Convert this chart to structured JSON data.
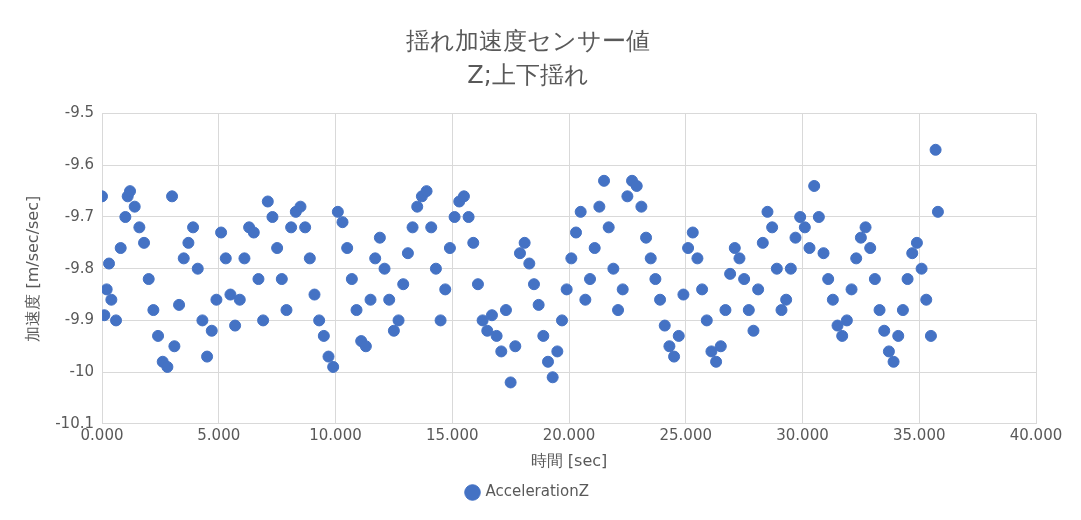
{
  "chart_data": {
    "type": "scatter",
    "title": "揺れ加速度センサー値",
    "subtitle": "Z;上下揺れ",
    "xlabel": "時間 [sec]",
    "ylabel": "加速度 [m/sec/sec]",
    "xlim": [
      0,
      40
    ],
    "xticks": [
      {
        "value": 0,
        "label": "0.000"
      },
      {
        "value": 5,
        "label": "5.000"
      },
      {
        "value": 10,
        "label": "10.000"
      },
      {
        "value": 15,
        "label": "15.000"
      },
      {
        "value": 20,
        "label": "20.000"
      },
      {
        "value": 25,
        "label": "25.000"
      },
      {
        "value": 30,
        "label": "30.000"
      },
      {
        "value": 35,
        "label": "35.000"
      },
      {
        "value": 40,
        "label": "40.000"
      }
    ],
    "ylim": [
      -10.1,
      -9.5
    ],
    "yticks": [
      -10.1,
      -10,
      -9.9,
      -9.8,
      -9.7,
      -9.6,
      -9.5
    ],
    "grid": true,
    "legend": "bottom",
    "marker": "circle",
    "series": [
      {
        "name": "AccelerationZ",
        "color": "#4472c4",
        "x": [
          0,
          0.1,
          0.2,
          0.3,
          0.4,
          0.6,
          0.8,
          1.0,
          1.1,
          1.2,
          1.4,
          1.6,
          1.8,
          2.0,
          2.2,
          2.4,
          2.6,
          2.8,
          3.0,
          3.1,
          3.3,
          3.5,
          3.7,
          3.9,
          4.1,
          4.3,
          4.5,
          4.7,
          4.9,
          5.1,
          5.3,
          5.5,
          5.7,
          5.9,
          6.1,
          6.3,
          6.5,
          6.7,
          6.9,
          7.1,
          7.3,
          7.5,
          7.7,
          7.9,
          8.1,
          8.3,
          8.5,
          8.7,
          8.9,
          9.1,
          9.3,
          9.5,
          9.7,
          9.9,
          10.1,
          10.3,
          10.5,
          10.7,
          10.9,
          11.1,
          11.3,
          11.5,
          11.7,
          11.9,
          12.1,
          12.3,
          12.5,
          12.7,
          12.9,
          13.1,
          13.3,
          13.5,
          13.7,
          13.9,
          14.1,
          14.3,
          14.5,
          14.7,
          14.9,
          15.1,
          15.3,
          15.5,
          15.7,
          15.9,
          16.1,
          16.3,
          16.5,
          16.7,
          16.9,
          17.1,
          17.3,
          17.5,
          17.7,
          17.9,
          18.1,
          18.3,
          18.5,
          18.7,
          18.9,
          19.1,
          19.3,
          19.5,
          19.7,
          19.9,
          20.1,
          20.3,
          20.5,
          20.7,
          20.9,
          21.1,
          21.3,
          21.5,
          21.7,
          21.9,
          22.1,
          22.3,
          22.5,
          22.7,
          22.9,
          23.1,
          23.3,
          23.5,
          23.7,
          23.9,
          24.1,
          24.3,
          24.5,
          24.7,
          24.9,
          25.1,
          25.3,
          25.5,
          25.7,
          25.9,
          26.1,
          26.3,
          26.5,
          26.7,
          26.9,
          27.1,
          27.3,
          27.5,
          27.7,
          27.9,
          28.1,
          28.3,
          28.5,
          28.7,
          28.9,
          29.1,
          29.3,
          29.5,
          29.7,
          29.9,
          30.1,
          30.3,
          30.5,
          30.7,
          30.9,
          31.1,
          31.3,
          31.5,
          31.7,
          31.9,
          32.1,
          32.3,
          32.5,
          32.7,
          32.9,
          33.1,
          33.3,
          33.5,
          33.7,
          33.9,
          34.1,
          34.3,
          34.5,
          34.7,
          34.9,
          35.1,
          35.3,
          35.5,
          35.7,
          35.8
        ],
        "values": [
          -9.66,
          -9.89,
          -9.84,
          -9.79,
          -9.86,
          -9.9,
          -9.76,
          -9.7,
          -9.66,
          -9.65,
          -9.68,
          -9.72,
          -9.75,
          -9.82,
          -9.88,
          -9.93,
          -9.98,
          -9.99,
          -9.66,
          -9.95,
          -9.87,
          -9.78,
          -9.75,
          -9.72,
          -9.8,
          -9.9,
          -9.97,
          -9.92,
          -9.86,
          -9.73,
          -9.78,
          -9.85,
          -9.91,
          -9.86,
          -9.78,
          -9.72,
          -9.73,
          -9.82,
          -9.9,
          -9.67,
          -9.7,
          -9.76,
          -9.82,
          -9.88,
          -9.72,
          -9.69,
          -9.68,
          -9.72,
          -9.78,
          -9.85,
          -9.9,
          -9.93,
          -9.97,
          -9.99,
          -9.69,
          -9.71,
          -9.76,
          -9.82,
          -9.88,
          -9.94,
          -9.95,
          -9.86,
          -9.78,
          -9.74,
          -9.8,
          -9.86,
          -9.92,
          -9.9,
          -9.83,
          -9.77,
          -9.72,
          -9.68,
          -9.66,
          -9.65,
          -9.72,
          -9.8,
          -9.9,
          -9.84,
          -9.76,
          -9.7,
          -9.67,
          -9.66,
          -9.7,
          -9.75,
          -9.83,
          -9.9,
          -9.92,
          -9.89,
          -9.93,
          -9.96,
          -9.88,
          -10.02,
          -9.95,
          -9.77,
          -9.75,
          -9.79,
          -9.83,
          -9.87,
          -9.93,
          -9.98,
          -10.01,
          -9.96,
          -9.9,
          -9.84,
          -9.78,
          -9.73,
          -9.69,
          -9.86,
          -9.82,
          -9.76,
          -9.68,
          -9.63,
          -9.72,
          -9.8,
          -9.88,
          -9.84,
          -9.66,
          -9.63,
          -9.64,
          -9.68,
          -9.74,
          -9.78,
          -9.82,
          -9.86,
          -9.91,
          -9.95,
          -9.97,
          -9.93,
          -9.85,
          -9.76,
          -9.73,
          -9.78,
          -9.84,
          -9.9,
          -9.96,
          -9.98,
          -9.95,
          -9.88,
          -9.81,
          -9.76,
          -9.78,
          -9.82,
          -9.88,
          -9.92,
          -9.84,
          -9.75,
          -9.69,
          -9.72,
          -9.8,
          -9.88,
          -9.86,
          -9.8,
          -9.74,
          -9.7,
          -9.72,
          -9.76,
          -9.64,
          -9.7,
          -9.77,
          -9.82,
          -9.86,
          -9.91,
          -9.93,
          -9.9,
          -9.84,
          -9.78,
          -9.74,
          -9.72,
          -9.76,
          -9.82,
          -9.88,
          -9.92,
          -9.96,
          -9.98,
          -9.93,
          -9.88,
          -9.82,
          -9.77,
          -9.75,
          -9.8,
          -9.86,
          -9.93,
          -9.57,
          -9.69
        ]
      }
    ]
  }
}
